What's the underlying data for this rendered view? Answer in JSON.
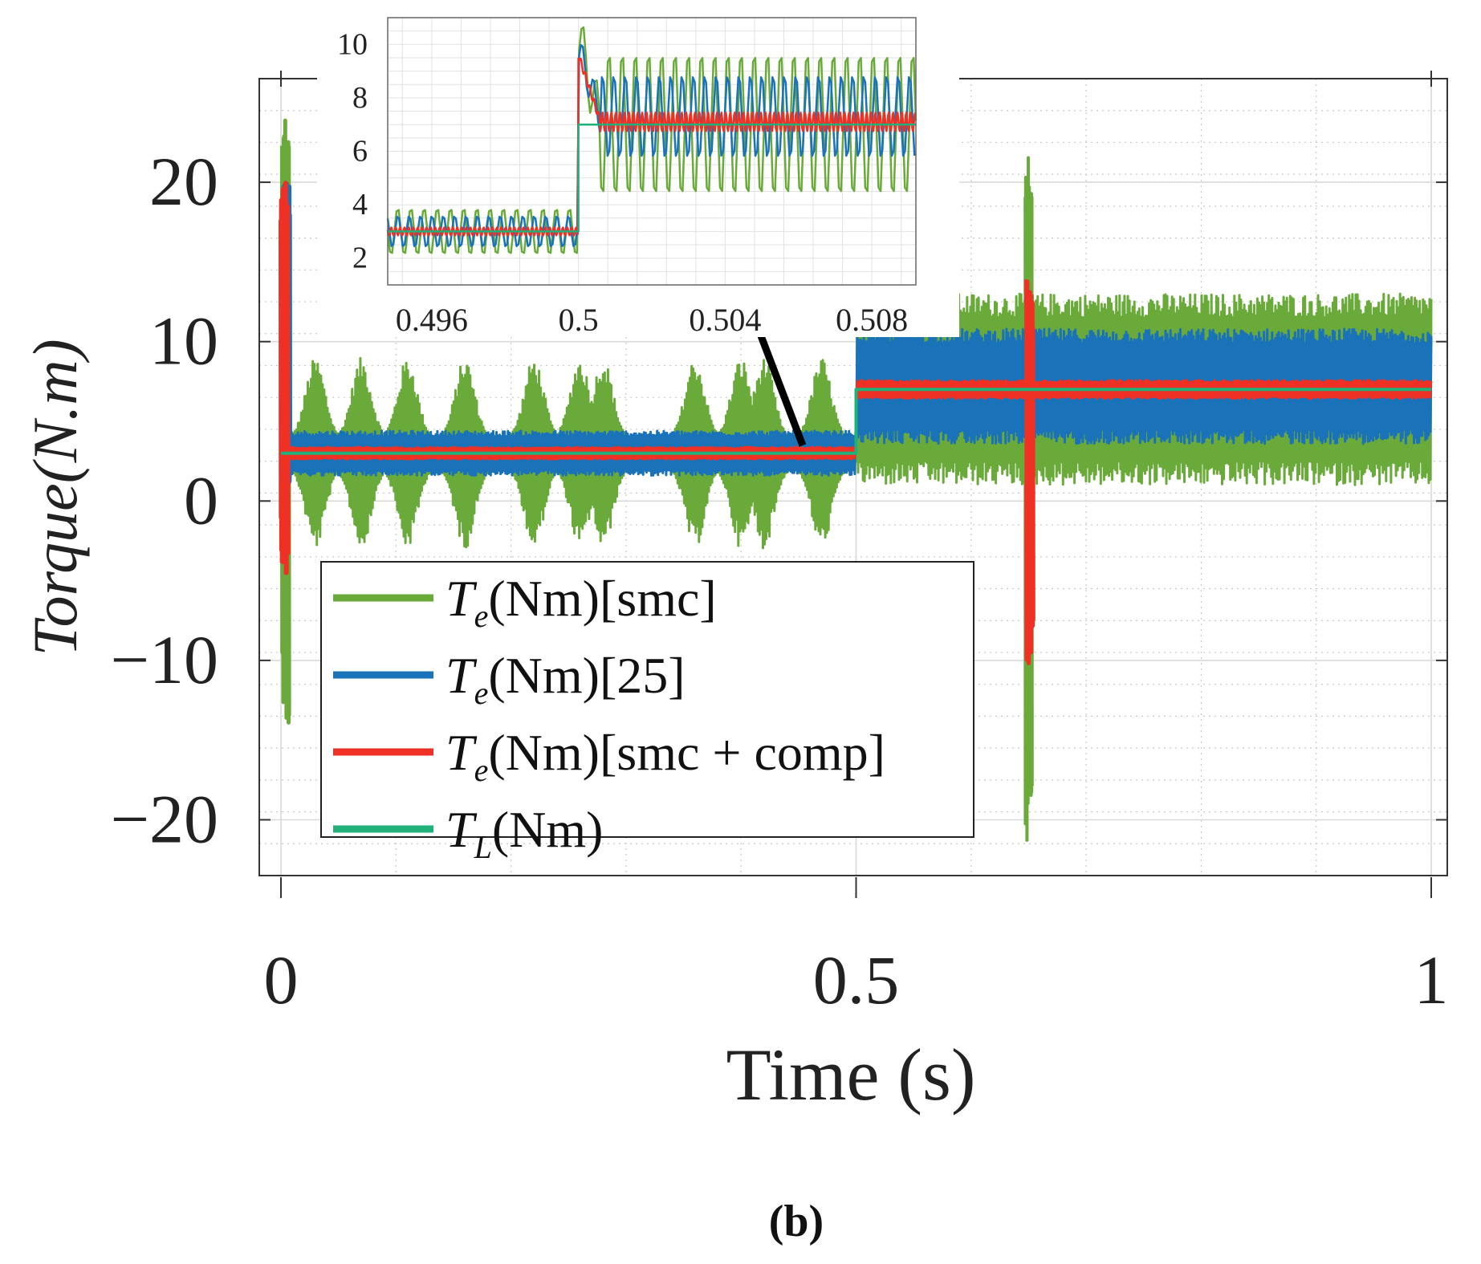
{
  "chart_data": [
    {
      "id": "main",
      "type": "line",
      "title": "",
      "xlabel": "Time (s)",
      "ylabel": "Torque(N.m)",
      "xlim": [
        0,
        1
      ],
      "ylim": [
        -23.5,
        26.5
      ],
      "xticks": [
        0,
        0.5,
        1
      ],
      "xtick_labels": [
        "0",
        "0.5",
        "1"
      ],
      "yticks": [
        20,
        10,
        0,
        -10,
        -20
      ],
      "ytick_labels": [
        "20",
        "10",
        "0",
        "−10",
        "−20"
      ],
      "grid": true,
      "legend": {
        "position": "bottom-left",
        "entries": [
          {
            "series": "smc",
            "main": "T",
            "sub": "e",
            "rest": "(Nm)[smc]"
          },
          {
            "series": "ref25",
            "main": "T",
            "sub": "e",
            "rest": "(Nm)[25]"
          },
          {
            "series": "smc_comp",
            "main": "T",
            "sub": "e",
            "rest": "(Nm)[smc + comp]"
          },
          {
            "series": "load",
            "main": "T",
            "sub": "L",
            "rest": "(Nm)"
          }
        ]
      },
      "series": [
        {
          "key": "smc",
          "name": "Te(Nm)[smc]",
          "color": "#6aaa3a",
          "startup_spike": [
            24,
            -14
          ],
          "mean": [
            3,
            7
          ],
          "band_amplitude": [
            6,
            6
          ],
          "disturbance_time": 0.65,
          "disturbance_spike": [
            22,
            -22
          ]
        },
        {
          "key": "ref25",
          "name": "Te(Nm)[25]",
          "color": "#1a72b8",
          "startup_spike": [
            20,
            0
          ],
          "mean": [
            3,
            7.2
          ],
          "band_amplitude": [
            1.4,
            3.6
          ]
        },
        {
          "key": "smc_comp",
          "name": "Te(Nm)[smc + comp]",
          "color": "#ee3124",
          "startup_spike": [
            20,
            -4.5
          ],
          "mean": [
            3,
            7
          ],
          "band_amplitude": [
            0.4,
            0.6
          ],
          "disturbance_time": 0.65,
          "disturbance_spike": [
            14,
            -10.5
          ]
        },
        {
          "key": "load",
          "name": "TL(Nm)",
          "color": "#22b07a",
          "step_time": 0.5,
          "values": [
            3,
            7
          ]
        }
      ]
    },
    {
      "id": "inset",
      "type": "line",
      "title": "",
      "xlim": [
        0.4948,
        0.5092
      ],
      "ylim": [
        1.0,
        11.0
      ],
      "xticks": [
        0.496,
        0.5,
        0.504,
        0.508
      ],
      "xtick_labels": [
        "0.496",
        "0.5",
        "0.504",
        "0.508"
      ],
      "yticks": [
        2,
        4,
        6,
        8,
        10
      ],
      "ytick_labels": [
        "2",
        "4",
        "6",
        "8",
        "10"
      ],
      "grid": true,
      "series": [
        {
          "key": "smc",
          "before": {
            "mean": 3,
            "amp": 0.9
          },
          "after": {
            "mean": 7,
            "amp": 2.8
          },
          "overshoot": 10.3
        },
        {
          "key": "ref25",
          "before": {
            "mean": 3,
            "amp": 0.6
          },
          "after": {
            "mean": 7.3,
            "amp": 1.6
          },
          "overshoot": 9.8
        },
        {
          "key": "smc_comp",
          "before": {
            "mean": 3,
            "amp": 0.15
          },
          "after": {
            "mean": 7.1,
            "amp": 0.35
          },
          "overshoot": 9.6
        },
        {
          "key": "load",
          "before": {
            "mean": 3,
            "amp": 0
          },
          "after": {
            "mean": 7,
            "amp": 0
          }
        }
      ],
      "step_time": 0.5,
      "pointer": "arrow from main plot (~0.45 s, ~3.3 Nm) to inset"
    }
  ],
  "caption": "(b)"
}
